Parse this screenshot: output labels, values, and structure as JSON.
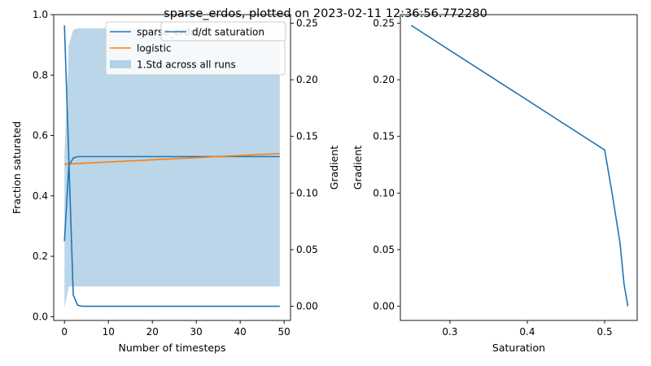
{
  "figure": {
    "title": "sparse_erdos, plotted on 2023-02-11 12:36:56.772280"
  },
  "colors": {
    "blue": "#1f77b4",
    "orange": "#ff7f0e",
    "band": "#1f77b4"
  },
  "chart_data": [
    {
      "type": "line",
      "xlabel": "Number of timesteps",
      "ylabel": "Fraction saturated",
      "y2label": "Gradient",
      "xlim": [
        -2.45,
        51.45
      ],
      "ylim": [
        -0.0125,
        1.0
      ],
      "y2lim": [
        -0.0125,
        0.2575
      ],
      "xticks": [
        0,
        10,
        20,
        30,
        40,
        50
      ],
      "yticks": [
        0.0,
        0.2,
        0.4,
        0.6,
        0.8,
        1.0
      ],
      "y2ticks": [
        0.0,
        0.05,
        0.1,
        0.15,
        0.2,
        0.25
      ],
      "series": [
        {
          "name": "sparse_erdos",
          "axis": "left",
          "color": "blue",
          "x": [
            0,
            1,
            2,
            3,
            4,
            5,
            10,
            20,
            30,
            40,
            49
          ],
          "y": [
            0.25,
            0.5,
            0.525,
            0.53,
            0.53,
            0.53,
            0.53,
            0.53,
            0.53,
            0.53,
            0.53
          ]
        },
        {
          "name": "logistic",
          "axis": "left",
          "color": "orange",
          "x": [
            0,
            49
          ],
          "y": [
            0.505,
            0.54
          ]
        },
        {
          "name": "d/dt saturation",
          "axis": "right",
          "color": "blue",
          "x": [
            0,
            1,
            2,
            3,
            4,
            5,
            10,
            20,
            30,
            40,
            49
          ],
          "y": [
            0.248,
            0.13,
            0.01,
            0.001,
            0.0,
            0.0,
            0.0,
            0.0,
            0.0,
            0.0,
            0.0
          ]
        }
      ],
      "bands": [
        {
          "name": "1.Std across all runs",
          "axis": "left",
          "color": "band",
          "x": [
            0,
            1,
            2,
            3,
            5,
            10,
            20,
            30,
            40,
            49
          ],
          "lower": [
            0.03,
            0.1,
            0.1,
            0.1,
            0.1,
            0.1,
            0.1,
            0.1,
            0.1,
            0.1
          ],
          "upper": [
            0.53,
            0.9,
            0.95,
            0.955,
            0.955,
            0.955,
            0.955,
            0.955,
            0.955,
            0.955
          ]
        }
      ],
      "legend": {
        "placement": "top-right",
        "entries": [
          "sparse_erdos",
          "logistic",
          "1.Std across all runs"
        ]
      },
      "legend2": {
        "placement": "top-right",
        "entries": [
          "d/dt saturation"
        ]
      },
      "grid": false
    },
    {
      "type": "line",
      "xlabel": "Saturation",
      "ylabel": "Gradient",
      "xlim": [
        0.236,
        0.542
      ],
      "ylim": [
        -0.0125,
        0.2575
      ],
      "xticks": [
        0.3,
        0.4,
        0.5
      ],
      "xtick_labels": [
        "0.3",
        "0.4",
        "0.5"
      ],
      "yticks": [
        0.0,
        0.05,
        0.1,
        0.15,
        0.2,
        0.25
      ],
      "series": [
        {
          "name": "",
          "color": "blue",
          "x": [
            0.25,
            0.3,
            0.4,
            0.5,
            0.51,
            0.52,
            0.525,
            0.53
          ],
          "y": [
            0.248,
            0.226,
            0.182,
            0.138,
            0.098,
            0.055,
            0.02,
            0.0
          ]
        }
      ],
      "grid": false
    }
  ]
}
